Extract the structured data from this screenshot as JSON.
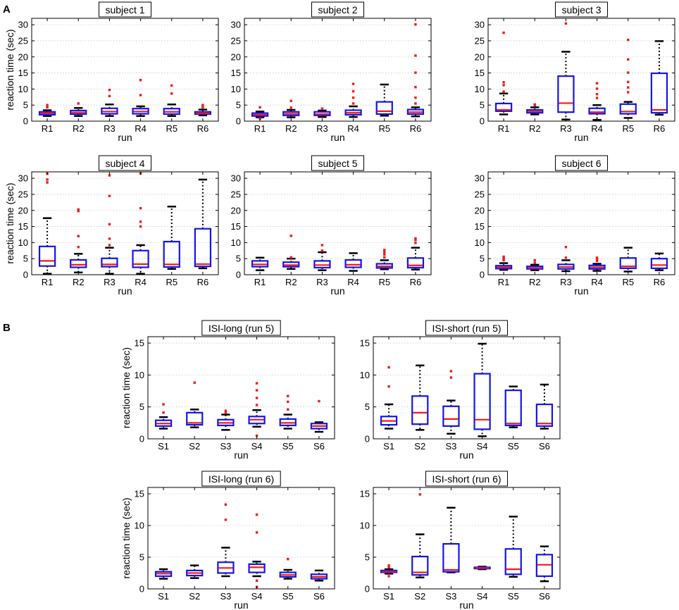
{
  "chart_data": [
    {
      "type": "box",
      "panel": "A",
      "title": "subject 1",
      "xlabel": "run",
      "ylabel": "reaction time (sec)",
      "ylim": [
        0,
        32
      ],
      "yticks": [
        0,
        5,
        10,
        15,
        20,
        25,
        30
      ],
      "categories": [
        "R1",
        "R2",
        "R3",
        "R4",
        "R5",
        "R6"
      ],
      "boxes": [
        {
          "whisker_low": 1.6,
          "q1": 2.0,
          "median": 2.4,
          "q3": 2.9,
          "whisker_high": 3.4,
          "outliers": [
            4.3,
            5.0
          ]
        },
        {
          "whisker_low": 1.6,
          "q1": 2.2,
          "median": 2.7,
          "q3": 3.3,
          "whisker_high": 4.1,
          "outliers": [
            5.5
          ]
        },
        {
          "whisker_low": 1.6,
          "q1": 2.3,
          "median": 3.0,
          "q3": 4.0,
          "whisker_high": 5.2,
          "outliers": [
            7.8,
            9.7
          ]
        },
        {
          "whisker_low": 1.6,
          "q1": 2.3,
          "median": 3.0,
          "q3": 3.9,
          "whisker_high": 4.6,
          "outliers": [
            8.1,
            12.8
          ]
        },
        {
          "whisker_low": 1.6,
          "q1": 2.2,
          "median": 2.9,
          "q3": 3.9,
          "whisker_high": 5.2,
          "outliers": [
            8.6,
            11.1
          ]
        },
        {
          "whisker_low": 1.8,
          "q1": 2.2,
          "median": 2.5,
          "q3": 2.9,
          "whisker_high": 3.6,
          "outliers": [
            4.3,
            5.0
          ]
        }
      ]
    },
    {
      "type": "box",
      "panel": "A",
      "title": "subject 2",
      "xlabel": "run",
      "ylabel": "",
      "ylim": [
        0,
        32
      ],
      "yticks": [
        0,
        5,
        10,
        15,
        20,
        25,
        30
      ],
      "categories": [
        "R1",
        "R2",
        "R3",
        "R4",
        "R5",
        "R6"
      ],
      "boxes": [
        {
          "whisker_low": 1.2,
          "q1": 1.6,
          "median": 2.0,
          "q3": 2.5,
          "whisker_high": 3.0,
          "outliers": [
            0.8,
            4.3
          ]
        },
        {
          "whisker_low": 1.2,
          "q1": 1.8,
          "median": 2.3,
          "q3": 2.9,
          "whisker_high": 3.5,
          "outliers": [
            4.2,
            6.3
          ]
        },
        {
          "whisker_low": 1.3,
          "q1": 1.8,
          "median": 2.2,
          "q3": 2.9,
          "whisker_high": 3.3,
          "outliers": [
            3.9
          ]
        },
        {
          "whisker_low": 1.3,
          "q1": 2.0,
          "median": 2.6,
          "q3": 3.4,
          "whisker_high": 4.6,
          "outliers": [
            5.5,
            7.3,
            9.3,
            11.6
          ]
        },
        {
          "whisker_low": 1.7,
          "q1": 2.2,
          "median": 3.1,
          "q3": 6.0,
          "whisker_high": 11.4,
          "outliers": []
        },
        {
          "whisker_low": 1.5,
          "q1": 2.2,
          "median": 2.8,
          "q3": 3.6,
          "whisker_high": 4.3,
          "outliers": [
            5.5,
            7.3,
            10.6,
            15.1,
            20.4,
            30.1
          ]
        }
      ]
    },
    {
      "type": "box",
      "panel": "A",
      "title": "subject 3",
      "xlabel": "run",
      "ylabel": "",
      "ylim": [
        0,
        32
      ],
      "yticks": [
        0,
        5,
        10,
        15,
        20,
        25,
        30
      ],
      "categories": [
        "R1",
        "R2",
        "R3",
        "R4",
        "R5",
        "R6"
      ],
      "boxes": [
        {
          "whisker_low": 2.1,
          "q1": 3.1,
          "median": 3.5,
          "q3": 5.5,
          "whisker_high": 8.6,
          "outliers": [
            9.2,
            11.2,
            12.1,
            27.5
          ]
        },
        {
          "whisker_low": 2.1,
          "q1": 2.6,
          "median": 3.0,
          "q3": 3.5,
          "whisker_high": 4.3,
          "outliers": [
            4.9,
            5.2
          ]
        },
        {
          "whisker_low": 0.5,
          "q1": 2.8,
          "median": 5.6,
          "q3": 14.0,
          "whisker_high": 21.6,
          "outliers": [
            30.4
          ]
        },
        {
          "whisker_low": 0.4,
          "q1": 2.3,
          "median": 2.8,
          "q3": 4.0,
          "whisker_high": 5.0,
          "outliers": [
            7.2,
            8.4,
            10.1,
            11.8
          ]
        },
        {
          "whisker_low": 1.0,
          "q1": 2.3,
          "median": 3.0,
          "q3": 5.3,
          "whisker_high": 6.0,
          "outliers": [
            9.0,
            10.5,
            12.2,
            15.1,
            19.2,
            25.3
          ]
        },
        {
          "whisker_low": 2.0,
          "q1": 2.6,
          "median": 3.5,
          "q3": 14.9,
          "whisker_high": 24.9,
          "outliers": []
        }
      ]
    },
    {
      "type": "box",
      "panel": "A",
      "title": "subject 4",
      "xlabel": "run",
      "ylabel": "reaction time (sec)",
      "ylim": [
        0,
        32
      ],
      "yticks": [
        0,
        5,
        10,
        15,
        20,
        25,
        30
      ],
      "categories": [
        "R1",
        "R2",
        "R3",
        "R4",
        "R5",
        "R6"
      ],
      "boxes": [
        {
          "whisker_low": 0.3,
          "q1": 2.7,
          "median": 4.3,
          "q3": 8.8,
          "whisker_high": 17.6,
          "outliers": [
            28.7,
            29.6,
            31.4
          ]
        },
        {
          "whisker_low": 0.7,
          "q1": 2.3,
          "median": 3.1,
          "q3": 4.6,
          "whisker_high": 6.5,
          "outliers": [
            8.6,
            12.0,
            19.8,
            20.3
          ]
        },
        {
          "whisker_low": 0.3,
          "q1": 2.5,
          "median": 3.2,
          "q3": 5.1,
          "whisker_high": 8.4,
          "outliers": [
            9.2,
            11.2,
            15.7,
            24.5,
            30.9
          ]
        },
        {
          "whisker_low": 0.3,
          "q1": 2.3,
          "median": 3.3,
          "q3": 7.5,
          "whisker_high": 9.2,
          "outliers": [
            15.0,
            16.5,
            20.7,
            31.5
          ]
        },
        {
          "whisker_low": 1.8,
          "q1": 2.4,
          "median": 3.2,
          "q3": 10.3,
          "whisker_high": 21.2,
          "outliers": []
        },
        {
          "whisker_low": 2.0,
          "q1": 2.6,
          "median": 3.3,
          "q3": 14.3,
          "whisker_high": 29.6,
          "outliers": []
        }
      ]
    },
    {
      "type": "box",
      "panel": "A",
      "title": "subject 5",
      "xlabel": "run",
      "ylabel": "",
      "ylim": [
        0,
        32
      ],
      "yticks": [
        0,
        5,
        10,
        15,
        20,
        25,
        30
      ],
      "categories": [
        "R1",
        "R2",
        "R3",
        "R4",
        "R5",
        "R6"
      ],
      "boxes": [
        {
          "whisker_low": 1.4,
          "q1": 2.5,
          "median": 3.2,
          "q3": 4.3,
          "whisker_high": 5.3,
          "outliers": []
        },
        {
          "whisker_low": 1.8,
          "q1": 2.5,
          "median": 3.0,
          "q3": 3.9,
          "whisker_high": 5.0,
          "outliers": [
            5.4,
            12.1
          ]
        },
        {
          "whisker_low": 1.4,
          "q1": 2.2,
          "median": 3.0,
          "q3": 4.3,
          "whisker_high": 7.0,
          "outliers": [
            7.5,
            9.2
          ]
        },
        {
          "whisker_low": 1.2,
          "q1": 2.3,
          "median": 3.1,
          "q3": 4.6,
          "whisker_high": 6.7,
          "outliers": []
        },
        {
          "whisker_low": 1.7,
          "q1": 2.1,
          "median": 2.6,
          "q3": 3.4,
          "whisker_high": 4.5,
          "outliers": [
            5.4,
            6.3,
            7.0,
            7.7
          ]
        },
        {
          "whisker_low": 1.6,
          "q1": 2.2,
          "median": 2.9,
          "q3": 5.2,
          "whisker_high": 8.4,
          "outliers": [
            9.9,
            10.8,
            11.3
          ]
        }
      ]
    },
    {
      "type": "box",
      "panel": "A",
      "title": "subject 6",
      "xlabel": "run",
      "ylabel": "",
      "ylim": [
        0,
        32
      ],
      "yticks": [
        0,
        5,
        10,
        15,
        20,
        25,
        30
      ],
      "categories": [
        "R1",
        "R2",
        "R3",
        "R4",
        "R5",
        "R6"
      ],
      "boxes": [
        {
          "whisker_low": 1.5,
          "q1": 1.9,
          "median": 2.3,
          "q3": 2.8,
          "whisker_high": 3.6,
          "outliers": [
            4.5,
            5.0,
            5.6
          ]
        },
        {
          "whisker_low": 1.4,
          "q1": 1.8,
          "median": 2.1,
          "q3": 2.6,
          "whisker_high": 3.1,
          "outliers": [
            3.7,
            4.5
          ]
        },
        {
          "whisker_low": 1.1,
          "q1": 1.8,
          "median": 2.4,
          "q3": 3.2,
          "whisker_high": 4.5,
          "outliers": [
            5.3,
            8.6
          ]
        },
        {
          "whisker_low": 1.2,
          "q1": 1.8,
          "median": 2.3,
          "q3": 2.9,
          "whisker_high": 3.4,
          "outliers": [
            4.3,
            4.8,
            5.3
          ]
        },
        {
          "whisker_low": 1.0,
          "q1": 2.0,
          "median": 2.6,
          "q3": 5.2,
          "whisker_high": 8.4,
          "outliers": []
        },
        {
          "whisker_low": 1.4,
          "q1": 2.0,
          "median": 3.0,
          "q3": 5.0,
          "whisker_high": 6.6,
          "outliers": []
        }
      ]
    },
    {
      "type": "box",
      "panel": "B",
      "title": "ISI-long (run 5)",
      "xlabel": "run",
      "ylabel": "reaction time (sec)",
      "ylim": [
        0,
        16
      ],
      "yticks": [
        0,
        5,
        10,
        15
      ],
      "categories": [
        "S1",
        "S2",
        "S3",
        "S4",
        "S5",
        "S6"
      ],
      "boxes": [
        {
          "whisker_low": 1.6,
          "q1": 2.0,
          "median": 2.4,
          "q3": 2.9,
          "whisker_high": 3.4,
          "outliers": [
            4.1,
            5.4
          ]
        },
        {
          "whisker_low": 1.8,
          "q1": 2.2,
          "median": 2.5,
          "q3": 4.1,
          "whisker_high": 4.6,
          "outliers": [
            8.8
          ]
        },
        {
          "whisker_low": 1.4,
          "q1": 2.1,
          "median": 2.5,
          "q3": 3.0,
          "whisker_high": 3.8,
          "outliers": [
            4.1,
            4.4
          ]
        },
        {
          "whisker_low": 1.9,
          "q1": 2.4,
          "median": 3.0,
          "q3": 3.5,
          "whisker_high": 4.5,
          "outliers": [
            0.5,
            5.3,
            6.4,
            7.6,
            8.7
          ]
        },
        {
          "whisker_low": 1.6,
          "q1": 2.1,
          "median": 2.5,
          "q3": 3.1,
          "whisker_high": 3.8,
          "outliers": [
            4.6,
            5.8,
            6.7
          ]
        },
        {
          "whisker_low": 1.1,
          "q1": 1.6,
          "median": 2.0,
          "q3": 2.4,
          "whisker_high": 2.6,
          "outliers": [
            5.9
          ]
        }
      ]
    },
    {
      "type": "box",
      "panel": "B",
      "title": "ISI-short (run 5)",
      "xlabel": "run",
      "ylabel": "",
      "ylim": [
        0,
        16
      ],
      "yticks": [
        0,
        5,
        10,
        15
      ],
      "categories": [
        "S1",
        "S2",
        "S3",
        "S4",
        "S5",
        "S6"
      ],
      "boxes": [
        {
          "whisker_low": 1.6,
          "q1": 2.2,
          "median": 2.8,
          "q3": 3.5,
          "whisker_high": 5.4,
          "outliers": [
            8.2,
            11.2
          ]
        },
        {
          "whisker_low": 1.4,
          "q1": 2.3,
          "median": 4.1,
          "q3": 6.7,
          "whisker_high": 11.5,
          "outliers": []
        },
        {
          "whisker_low": 0.8,
          "q1": 2.0,
          "median": 3.1,
          "q3": 5.1,
          "whisker_high": 6.0,
          "outliers": [
            9.6,
            10.6
          ]
        },
        {
          "whisker_low": 0.4,
          "q1": 1.5,
          "median": 3.0,
          "q3": 10.2,
          "whisker_high": 14.9,
          "outliers": []
        },
        {
          "whisker_low": 1.8,
          "q1": 2.1,
          "median": 2.4,
          "q3": 7.6,
          "whisker_high": 8.2,
          "outliers": []
        },
        {
          "whisker_low": 1.6,
          "q1": 2.0,
          "median": 2.4,
          "q3": 5.4,
          "whisker_high": 8.5,
          "outliers": []
        }
      ]
    },
    {
      "type": "box",
      "panel": "B",
      "title": "ISI-long (run 6)",
      "xlabel": "run",
      "ylabel": "reaction time (sec)",
      "ylim": [
        0,
        16
      ],
      "yticks": [
        0,
        5,
        10,
        15
      ],
      "categories": [
        "S1",
        "S2",
        "S3",
        "S4",
        "S5",
        "S6"
      ],
      "boxes": [
        {
          "whisker_low": 1.6,
          "q1": 2.0,
          "median": 2.4,
          "q3": 2.7,
          "whisker_high": 3.1,
          "outliers": []
        },
        {
          "whisker_low": 1.7,
          "q1": 2.1,
          "median": 2.5,
          "q3": 2.9,
          "whisker_high": 3.7,
          "outliers": []
        },
        {
          "whisker_low": 2.0,
          "q1": 2.5,
          "median": 3.3,
          "q3": 4.2,
          "whisker_high": 6.5,
          "outliers": [
            10.9,
            13.3
          ]
        },
        {
          "whisker_low": 2.0,
          "q1": 2.6,
          "median": 3.4,
          "q3": 3.9,
          "whisker_high": 4.3,
          "outliers": [
            0.3,
            1.3,
            8.9,
            11.7
          ]
        },
        {
          "whisker_low": 1.6,
          "q1": 1.9,
          "median": 2.2,
          "q3": 2.6,
          "whisker_high": 3.0,
          "outliers": [
            4.7
          ]
        },
        {
          "whisker_low": 1.3,
          "q1": 1.6,
          "median": 1.9,
          "q3": 2.3,
          "whisker_high": 2.9,
          "outliers": []
        }
      ]
    },
    {
      "type": "box",
      "panel": "B",
      "title": "ISI-short (run 6)",
      "xlabel": "run",
      "ylabel": "",
      "ylim": [
        0,
        16
      ],
      "yticks": [
        0,
        5,
        10,
        15
      ],
      "categories": [
        "S1",
        "S2",
        "S3",
        "S4",
        "S5",
        "S6"
      ],
      "boxes": [
        {
          "whisker_low": 2.4,
          "q1": 2.6,
          "median": 2.7,
          "q3": 2.9,
          "whisker_high": 3.1,
          "outliers": [
            2.0,
            3.4,
            3.7
          ]
        },
        {
          "whisker_low": 1.8,
          "q1": 2.2,
          "median": 2.6,
          "q3": 5.1,
          "whisker_high": 8.6,
          "outliers": [
            14.9
          ]
        },
        {
          "whisker_low": 2.6,
          "q1": 2.7,
          "median": 3.0,
          "q3": 7.1,
          "whisker_high": 12.8,
          "outliers": []
        },
        {
          "whisker_low": 3.1,
          "q1": 3.2,
          "median": 3.3,
          "q3": 3.4,
          "whisker_high": 3.5,
          "outliers": []
        },
        {
          "whisker_low": 1.9,
          "q1": 2.3,
          "median": 3.1,
          "q3": 6.3,
          "whisker_high": 11.4,
          "outliers": []
        },
        {
          "whisker_low": 1.2,
          "q1": 2.0,
          "median": 3.8,
          "q3": 5.4,
          "whisker_high": 6.7,
          "outliers": []
        }
      ]
    }
  ],
  "figure": {
    "panel_labels": [
      "A",
      "B"
    ],
    "colors": {
      "box": "#1515e6",
      "median": "#ee1c1c",
      "whisker": "#000000",
      "outlier": "#ee1c1c",
      "grid": "#c8c8c8"
    }
  }
}
